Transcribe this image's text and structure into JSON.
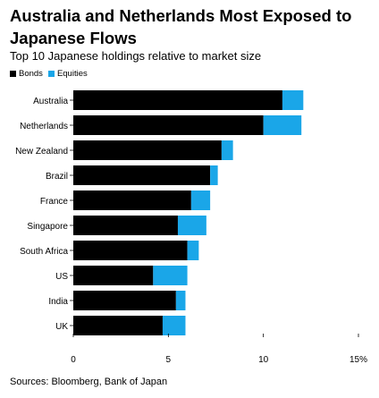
{
  "title": "Australia and Netherlands Most Exposed to Japanese Flows",
  "subtitle": "Top 10 Japanese holdings relative to market size",
  "source": "Sources: Bloomberg, Bank of Japan",
  "colors": {
    "bonds": "#000000",
    "equities": "#1aa6e8"
  },
  "chart_data": {
    "type": "bar",
    "orientation": "horizontal",
    "stacked": true,
    "categories": [
      "Australia",
      "Netherlands",
      "New Zealand",
      "Brazil",
      "France",
      "Singapore",
      "South Africa",
      "US",
      "India",
      "UK"
    ],
    "series": [
      {
        "name": "Bonds",
        "values": [
          11.0,
          10.0,
          7.8,
          7.2,
          6.2,
          5.5,
          6.0,
          4.2,
          5.4,
          4.7
        ]
      },
      {
        "name": "Equities",
        "values": [
          1.1,
          2.0,
          0.6,
          0.4,
          1.0,
          1.5,
          0.6,
          1.8,
          0.5,
          1.2
        ]
      }
    ],
    "xlim": [
      0,
      15
    ],
    "xticks": [
      0,
      5,
      10,
      15
    ],
    "xtick_labels": [
      "0",
      "5",
      "10",
      "15%"
    ],
    "legend_position": "top-left",
    "grid": false
  }
}
